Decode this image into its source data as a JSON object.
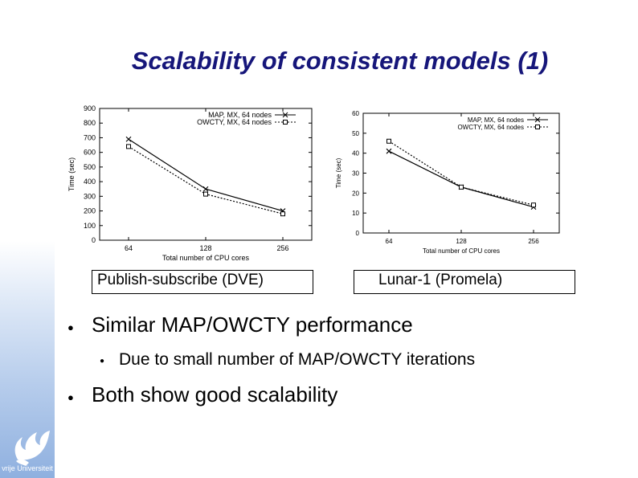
{
  "slide": {
    "title": "Scalability of consistent models (1)",
    "logo_text": "vrije Universiteit"
  },
  "captions": {
    "left": "Publish-subscribe (DVE)",
    "right": "Lunar-1 (Promela)"
  },
  "bullets": {
    "main1": "Similar MAP/OWCTY performance",
    "sub1": "Due to small number of MAP/OWCTY iterations",
    "main2": "Both show good scalability",
    "bullet_glyph": "●"
  },
  "chart_data": [
    {
      "type": "line",
      "title": "",
      "xlabel": "Total number of CPU cores",
      "ylabel": "Time (sec)",
      "categories": [
        "64",
        "128",
        "256"
      ],
      "ylim": [
        0,
        900
      ],
      "yticks": [
        "0",
        "100",
        "200",
        "300",
        "400",
        "500",
        "600",
        "700",
        "800",
        "900"
      ],
      "legend": "top-right",
      "series": [
        {
          "name": "MAP, MX, 64 nodes",
          "values": [
            690,
            350,
            200
          ],
          "style": "solid",
          "marker": "x"
        },
        {
          "name": "OWCTY, MX, 64 nodes",
          "values": [
            640,
            315,
            180
          ],
          "style": "dotted",
          "marker": "square"
        }
      ]
    },
    {
      "type": "line",
      "title": "",
      "xlabel": "Total number of CPU cores",
      "ylabel": "Time (sec)",
      "categories": [
        "64",
        "128",
        "256"
      ],
      "ylim": [
        0,
        60
      ],
      "yticks": [
        "0",
        "10",
        "20",
        "30",
        "40",
        "50",
        "60"
      ],
      "legend": "top-right",
      "series": [
        {
          "name": "MAP, MX, 64 nodes",
          "values": [
            41,
            23,
            13
          ],
          "style": "solid",
          "marker": "x"
        },
        {
          "name": "OWCTY, MX, 64 nodes",
          "values": [
            46,
            23,
            14
          ],
          "style": "dotted",
          "marker": "square"
        }
      ]
    }
  ]
}
